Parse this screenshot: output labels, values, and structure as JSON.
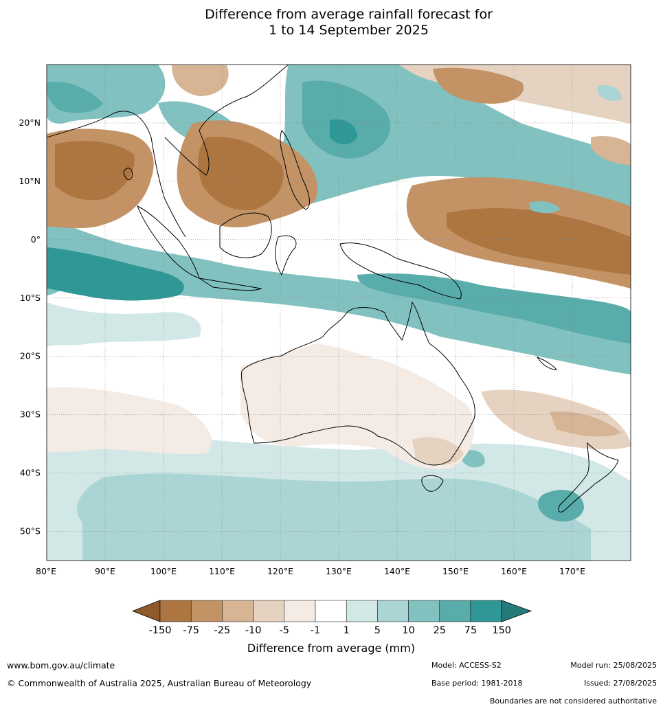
{
  "title": {
    "line1": "Difference from average rainfall forecast for",
    "line2": "1 to 14 September 2025"
  },
  "map": {
    "lon_range": [
      80,
      180
    ],
    "lat_range": [
      -55,
      30
    ],
    "lon_ticks": [
      80,
      90,
      100,
      110,
      120,
      130,
      140,
      150,
      160,
      170
    ],
    "lon_labels": [
      "80°E",
      "90°E",
      "100°E",
      "110°E",
      "120°E",
      "130°E",
      "140°E",
      "150°E",
      "160°E",
      "170°E"
    ],
    "lat_ticks": [
      20,
      10,
      0,
      -10,
      -20,
      -30,
      -40,
      -50
    ],
    "lat_labels": [
      "20°N",
      "10°N",
      "0°",
      "10°S",
      "20°S",
      "30°S",
      "40°S",
      "50°S"
    ],
    "grid": true
  },
  "colorbar": {
    "label": "Difference from average (mm)",
    "tick_labels": [
      "-150",
      "-75",
      "-25",
      "-10",
      "-5",
      "-1",
      "1",
      "5",
      "10",
      "25",
      "75",
      "150"
    ],
    "colors": [
      "#8e5a2c",
      "#ad7540",
      "#c39366",
      "#d6b494",
      "#e6d2c0",
      "#f4ebe5",
      "#ffffff",
      "#d2e8e7",
      "#abd5d4",
      "#81c1bf",
      "#58acaa",
      "#2f9896",
      "#257b79"
    ]
  },
  "footer": {
    "website": "www.bom.gov.au/climate",
    "copyright": "© Commonwealth of Australia 2025, Australian Bureau of Meteorology",
    "model": "Model: ACCESS-S2",
    "base_period": "Base period: 1981-2018",
    "model_run": "Model run: 25/08/2025",
    "issued": "Issued: 27/08/2025",
    "boundaries_note": "Boundaries are not considered authoritative"
  }
}
